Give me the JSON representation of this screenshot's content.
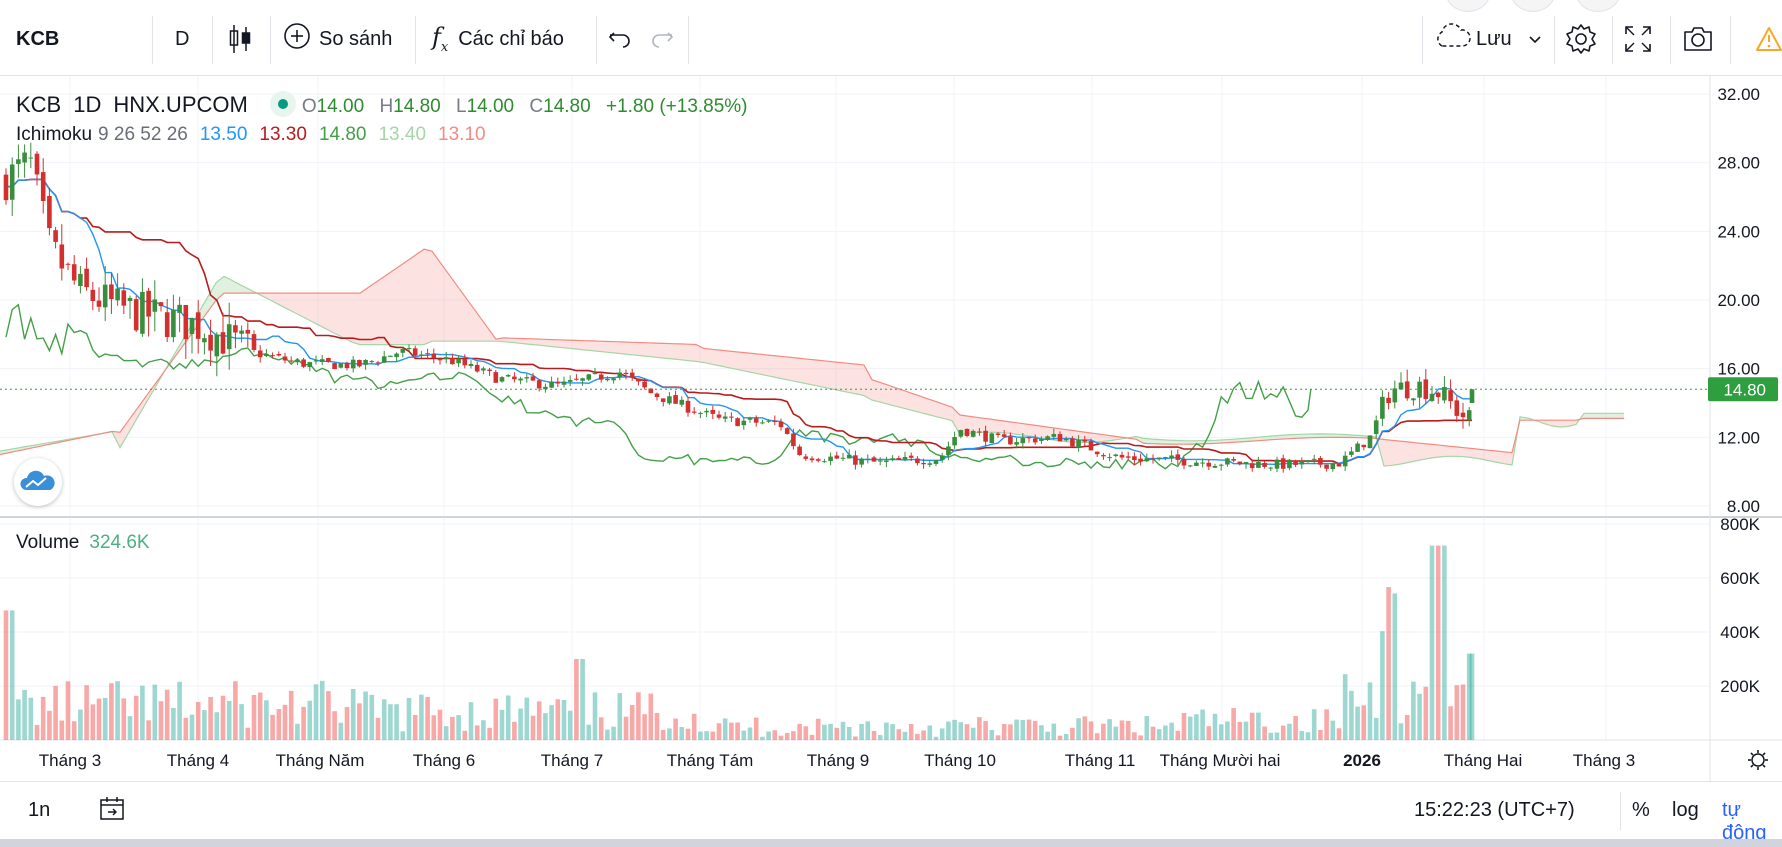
{
  "toolbar": {
    "symbol": "KCB",
    "interval": "D",
    "compare_label": "So sánh",
    "indicators_label": "Các chỉ báo",
    "save_label": "Lưu"
  },
  "legend": {
    "symbol": "KCB",
    "interval": "1D",
    "exchange": "HNX.UPCOM",
    "ohlc": {
      "o_key": "O",
      "o": "14.00",
      "h_key": "H",
      "h": "14.80",
      "l_key": "L",
      "l": "14.00",
      "c_key": "C",
      "c": "14.80",
      "change": "+1.80 (+13.85%)"
    },
    "ichimoku": {
      "name": "Ichimoku",
      "params": "9 26 52 26",
      "conversion": "13.50",
      "base": "13.30",
      "lagging": "14.80",
      "span_a": "13.40",
      "span_b": "13.10"
    },
    "volume": {
      "name": "Volume",
      "value": "324.6K"
    }
  },
  "colors": {
    "up": "#26a69a",
    "down": "#ef5350",
    "conversion": "#2196f3",
    "base": "#b71c1c",
    "lagging": "#43a047",
    "span_a": "#a5d6a7",
    "span_b": "#f28b82",
    "price_badge": "#2e9e3e"
  },
  "price_axis": {
    "ticks": [
      "32.00",
      "28.00",
      "24.00",
      "20.00",
      "16.00",
      "12.00",
      "8.00"
    ],
    "current": "14.80"
  },
  "volume_axis": {
    "ticks": [
      "800K",
      "600K",
      "400K",
      "200K"
    ]
  },
  "time_axis": [
    "Tháng 3",
    "Tháng 4",
    "Tháng Năm",
    "Tháng 6",
    "Tháng 7",
    "Tháng Tám",
    "Tháng 9",
    "Tháng 10",
    "Tháng 11",
    "Tháng Mười hai",
    "2026",
    "Tháng Hai",
    "Tháng 3"
  ],
  "bottombar": {
    "range": "1n",
    "time": "15:22:23 (UTC+7)",
    "percent": "%",
    "log": "log",
    "auto": "tự động"
  }
}
